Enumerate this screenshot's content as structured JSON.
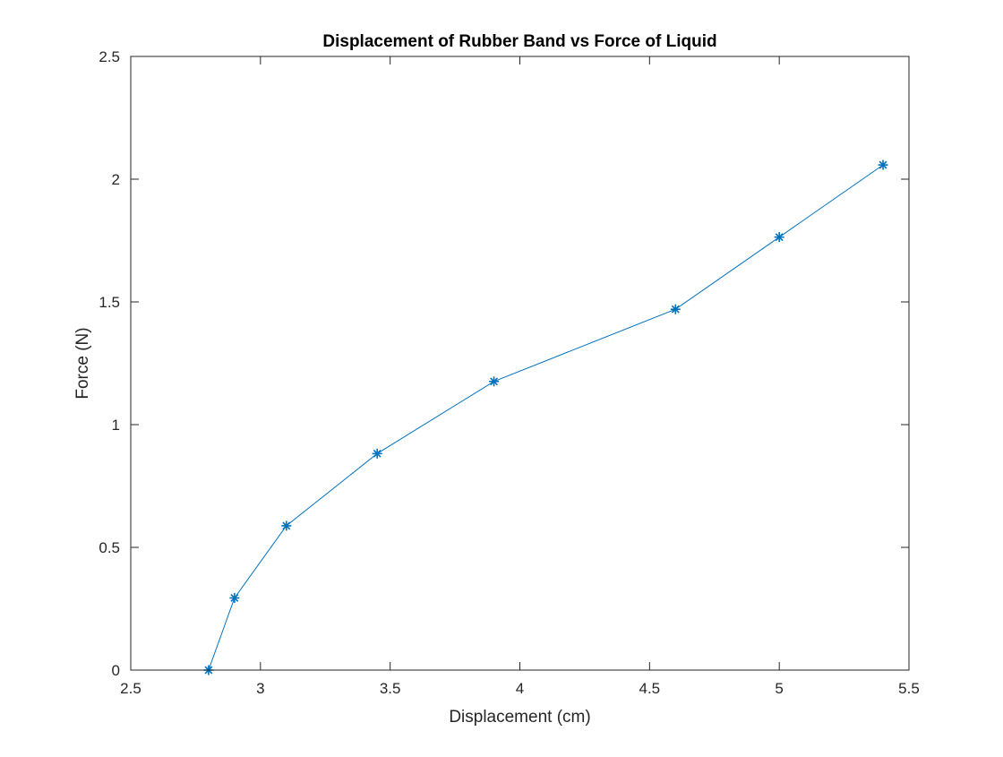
{
  "chart_data": {
    "type": "line",
    "title": "Displacement of Rubber Band vs Force of Liquid",
    "xlabel": "Displacement (cm)",
    "ylabel": "Force (N)",
    "xlim": [
      2.5,
      5.5
    ],
    "ylim": [
      0,
      2.5
    ],
    "grid": false,
    "legend": "none",
    "marker": "asterisk",
    "series": [
      {
        "color": "#0072BD",
        "x": [
          2.8,
          2.9,
          3.1,
          3.45,
          3.9,
          4.6,
          5.0,
          5.4
        ],
        "y": [
          0.0,
          0.294,
          0.588,
          0.882,
          1.176,
          1.47,
          1.764,
          2.058
        ]
      }
    ],
    "x_ticks": [
      {
        "value": 2.5,
        "label": "2.5"
      },
      {
        "value": 3.0,
        "label": "3"
      },
      {
        "value": 3.5,
        "label": "3.5"
      },
      {
        "value": 4.0,
        "label": "4"
      },
      {
        "value": 4.5,
        "label": "4.5"
      },
      {
        "value": 5.0,
        "label": "5"
      },
      {
        "value": 5.5,
        "label": "5.5"
      }
    ],
    "y_ticks": [
      {
        "value": 0.0,
        "label": "0"
      },
      {
        "value": 0.5,
        "label": "0.5"
      },
      {
        "value": 1.0,
        "label": "1"
      },
      {
        "value": 1.5,
        "label": "1.5"
      },
      {
        "value": 2.0,
        "label": "2"
      },
      {
        "value": 2.5,
        "label": "2.5"
      }
    ]
  }
}
